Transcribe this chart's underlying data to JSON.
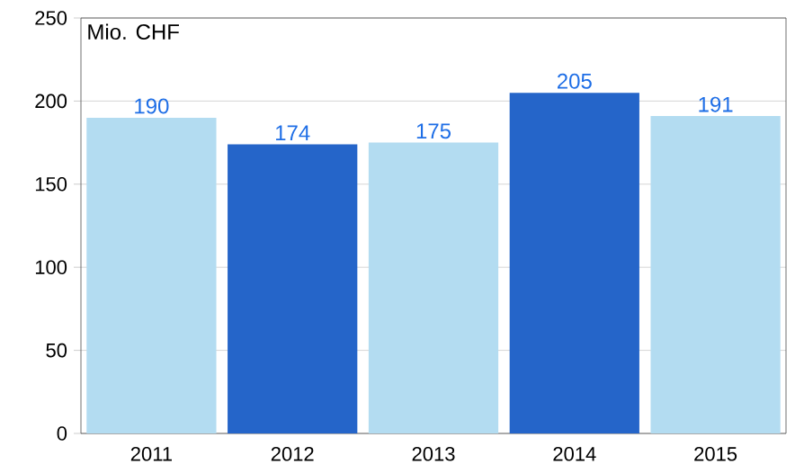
{
  "chart_data": {
    "type": "bar",
    "ylabel": "Mio. CHF",
    "categories": [
      "2011",
      "2012",
      "2013",
      "2014",
      "2015"
    ],
    "values": [
      190,
      174,
      175,
      205,
      191
    ],
    "colors": [
      "#b3dcf1",
      "#2565c9",
      "#b3dcf1",
      "#2565c9",
      "#b3dcf1"
    ],
    "ylim": [
      0,
      250
    ],
    "yticks": [
      0,
      50,
      100,
      150,
      200,
      250
    ],
    "grid": "y",
    "data_labels": true
  }
}
